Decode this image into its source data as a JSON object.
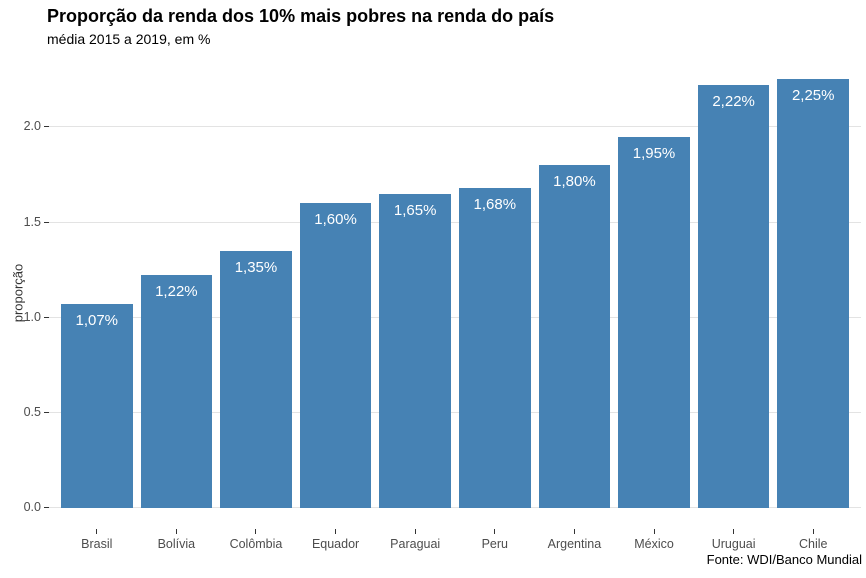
{
  "chart_data": {
    "type": "bar",
    "title": "Proporção da renda dos 10% mais pobres na renda do país",
    "subtitle": "média 2015 a 2019, em %",
    "caption": "Fonte: WDI/Banco Mundial",
    "xlabel": "",
    "ylabel": "proporção",
    "categories": [
      "Brasil",
      "Bolívia",
      "Colômbia",
      "Equador",
      "Paraguai",
      "Peru",
      "Argentina",
      "México",
      "Uruguai",
      "Chile"
    ],
    "values": [
      1.07,
      1.22,
      1.35,
      1.6,
      1.65,
      1.68,
      1.8,
      1.95,
      2.22,
      2.25
    ],
    "bar_labels": [
      "1,07%",
      "1,22%",
      "1,35%",
      "1,60%",
      "1,65%",
      "1,68%",
      "1,80%",
      "1,95%",
      "2,22%",
      "2,25%"
    ],
    "y_ticks": [
      0.0,
      0.5,
      1.0,
      1.5,
      2.0
    ],
    "y_tick_labels": [
      "0.0",
      "0.5",
      "1.0",
      "1.5",
      "2.0"
    ],
    "ylim": [
      -0.112,
      2.3625
    ],
    "grid": "horizontal-major-only",
    "legend": "none",
    "bar_width_fraction": 0.9,
    "colors": {
      "bar_fill": "#4682b4",
      "bar_label": "#ffffff",
      "gridline": "#e3e3e3",
      "tick_label": "#4d4d4d",
      "tick_mark": "#333333",
      "title": "#000000",
      "background": "#ffffff"
    }
  }
}
